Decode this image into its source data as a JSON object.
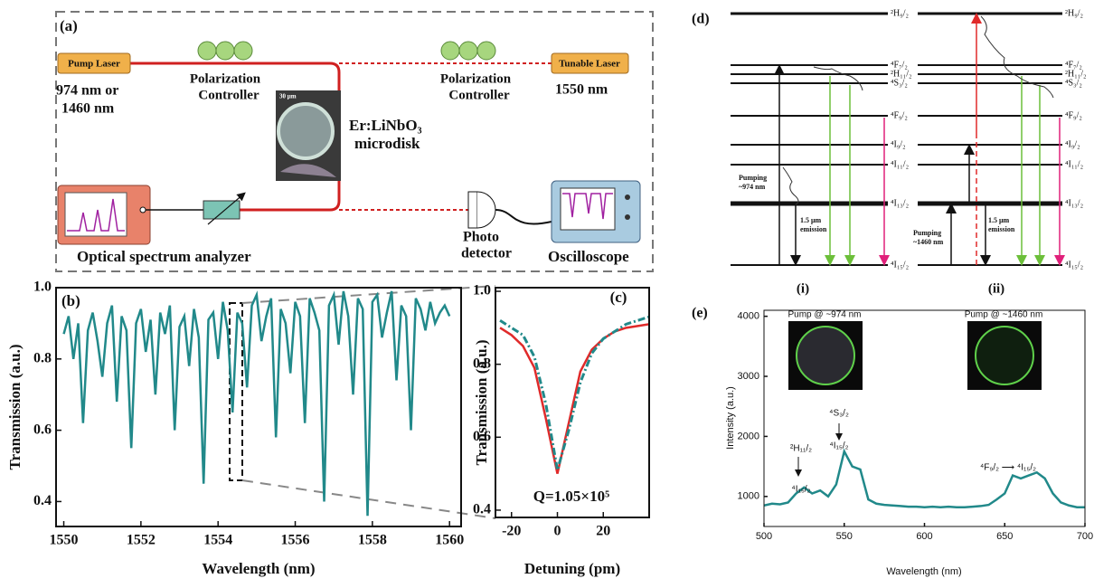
{
  "panel_a": {
    "label": "(a)",
    "pump_laser": "Pump Laser",
    "pump_wavelength": [
      "974 nm or",
      "1460 nm"
    ],
    "polarization_controller": [
      "Polarization",
      "Controller"
    ],
    "tunable_laser": "Tunable Laser",
    "tunable_wavelength": "1550 nm",
    "scale_bar": "30 μm",
    "device": [
      "Er:LiNbO₃",
      "microdisk"
    ],
    "osa": "Optical spectrum analyzer",
    "photodetector": [
      "Photo",
      "detector"
    ],
    "oscilloscope": "Oscilloscope"
  },
  "panel_d": {
    "label": "(d)",
    "levels": [
      "²H₉/₂",
      "⁴F₇/₂",
      "²H₁₁/₂",
      "⁴S₃/₂",
      "⁴F₉/₂",
      "⁴I₉/₂",
      "⁴I₁₁/₂",
      "⁴I₁₃/₂",
      "⁴I₁₅/₂"
    ],
    "pumping_974": [
      "Pumping",
      "~974 nm"
    ],
    "pumping_1460": [
      "Pumping",
      "~1460 nm"
    ],
    "emission": [
      "1.5 μm",
      "emission"
    ],
    "sub_labels": [
      "(i)",
      "(ii)"
    ]
  },
  "chart_data": [
    {
      "type": "line",
      "label": "(b)",
      "xlabel": "Wavelength (nm)",
      "ylabel": "Transmission (a.u.)",
      "xlim": [
        1549.8,
        1560.3
      ],
      "ylim": [
        0.33,
        1.0
      ],
      "xticks": [
        1550,
        1552,
        1554,
        1556,
        1558,
        1560
      ],
      "yticks": [
        0.4,
        0.6,
        0.8,
        {
          "value": 1,
          "label": "1.0"
        }
      ],
      "x": [
        1550,
        1550.125,
        1550.25,
        1550.375,
        1550.5,
        1550.625,
        1550.75,
        1550.875,
        1551,
        1551.125,
        1551.25,
        1551.375,
        1551.5,
        1551.625,
        1551.75,
        1551.875,
        1552,
        1552.125,
        1552.25,
        1552.375,
        1552.5,
        1552.625,
        1552.75,
        1552.875,
        1553,
        1553.125,
        1553.25,
        1553.375,
        1553.5,
        1553.625,
        1553.75,
        1553.875,
        1554,
        1554.125,
        1554.25,
        1554.375,
        1554.5,
        1554.625,
        1554.75,
        1554.875,
        1555,
        1555.125,
        1555.25,
        1555.375,
        1555.5,
        1555.625,
        1555.75,
        1555.875,
        1556,
        1556.125,
        1556.25,
        1556.375,
        1556.5,
        1556.625,
        1556.75,
        1556.875,
        1557,
        1557.125,
        1557.25,
        1557.375,
        1557.5,
        1557.625,
        1557.75,
        1557.875,
        1558,
        1558.125,
        1558.25,
        1558.375,
        1558.5,
        1558.625,
        1558.75,
        1558.875,
        1559,
        1559.125,
        1559.25,
        1559.375,
        1559.5,
        1559.625,
        1559.75,
        1559.875,
        1560
      ],
      "series": [
        {
          "color": "#21898a",
          "style": "solid",
          "values": [
            0.87,
            0.92,
            0.8,
            0.9,
            0.62,
            0.88,
            0.93,
            0.85,
            0.75,
            0.9,
            0.95,
            0.68,
            0.92,
            0.88,
            0.55,
            0.9,
            0.94,
            0.82,
            0.91,
            0.7,
            0.93,
            0.87,
            0.95,
            0.6,
            0.89,
            0.92,
            0.78,
            0.94,
            0.86,
            0.45,
            0.91,
            0.93,
            0.8,
            0.96,
            0.88,
            0.65,
            0.93,
            0.9,
            0.72,
            0.95,
            0.98,
            0.85,
            0.92,
            0.97,
            0.58,
            0.94,
            0.9,
            0.76,
            0.96,
            0.92,
            0.62,
            0.97,
            0.93,
            0.88,
            0.4,
            0.95,
            0.98,
            0.84,
            0.99,
            0.92,
            0.7,
            0.97,
            0.94,
            0.36,
            0.96,
            0.98,
            0.86,
            0.93,
            0.99,
            0.74,
            0.95,
            0.92,
            0.6,
            0.97,
            0.94,
            0.88,
            0.96,
            0.9,
            0.93,
            0.95,
            0.92
          ]
        }
      ],
      "annotations": []
    },
    {
      "type": "line",
      "label": "(c)",
      "xlabel": "Detuning (pm)",
      "ylabel": "Transmission (a.u.)",
      "xlim": [
        -27,
        40
      ],
      "ylim": [
        0.38,
        1.01
      ],
      "xticks": [
        -20,
        0,
        20
      ],
      "yticks": [
        0.4,
        0.6,
        0.8,
        {
          "value": 1,
          "label": "1.0"
        }
      ],
      "x": [
        -25,
        -20,
        -15,
        -10,
        -5,
        0,
        5,
        10,
        15,
        20,
        25,
        30,
        35,
        40
      ],
      "series": [
        {
          "color": "#e02a2a",
          "style": "solid",
          "values": [
            0.9,
            0.88,
            0.85,
            0.79,
            0.65,
            0.5,
            0.64,
            0.78,
            0.84,
            0.87,
            0.89,
            0.9,
            0.905,
            0.91
          ]
        },
        {
          "color": "#21898a",
          "style": "dashdot",
          "values": [
            0.92,
            0.9,
            0.88,
            0.82,
            0.69,
            0.51,
            0.62,
            0.75,
            0.83,
            0.87,
            0.89,
            0.91,
            0.92,
            0.93
          ]
        }
      ],
      "annotations": [
        "Q=1.05×10⁵"
      ]
    },
    {
      "type": "line",
      "label": "(e)",
      "xlabel": "Wavelength (nm)",
      "ylabel": "Intensity (a.u.)",
      "xlim": [
        500,
        700
      ],
      "ylim": [
        500,
        4100
      ],
      "xticks": [
        500,
        550,
        600,
        650,
        700
      ],
      "yticks": [
        1000,
        2000,
        3000,
        4000
      ],
      "x": [
        500,
        505,
        510,
        515,
        520,
        525,
        530,
        535,
        540,
        545,
        550,
        555,
        560,
        565,
        570,
        575,
        580,
        585,
        590,
        595,
        600,
        605,
        610,
        615,
        620,
        625,
        630,
        635,
        640,
        645,
        650,
        655,
        660,
        665,
        670,
        675,
        680,
        685,
        690,
        695,
        700
      ],
      "series": [
        {
          "color": "#21898a",
          "style": "solid",
          "values": [
            850,
            880,
            870,
            900,
            1050,
            1150,
            1050,
            1100,
            1000,
            1200,
            1750,
            1500,
            1450,
            950,
            880,
            860,
            850,
            840,
            830,
            830,
            820,
            830,
            820,
            830,
            820,
            820,
            830,
            840,
            860,
            950,
            1050,
            1350,
            1300,
            1350,
            1400,
            1300,
            1050,
            900,
            850,
            820,
            820
          ]
        }
      ],
      "annotations": [
        "²H₁₁/₂",
        "⁴I₁₅/₂",
        "⁴S₃/₂",
        "⁴I₁₅/₂",
        "⁴F₉/₂ ⟶ ⁴I₁₅/₂",
        "Pump @ ~974 nm",
        "Pump @ ~1460 nm"
      ]
    }
  ]
}
